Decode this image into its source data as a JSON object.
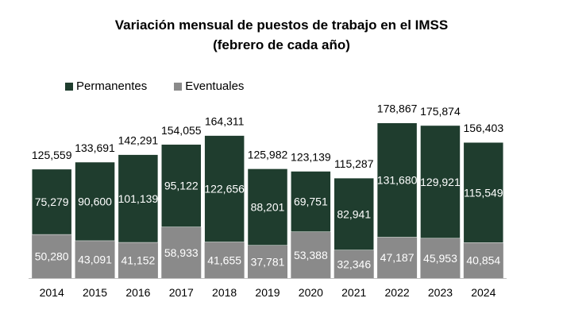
{
  "title": "Variación mensual de puestos de trabajo en el IMSS",
  "subtitle": "(febrero de cada año)",
  "colors": {
    "permanentes": "#1f3d2e",
    "eventuales": "#8a8a8a"
  },
  "chart_data": {
    "type": "bar",
    "stacked": true,
    "legend_position": "top-left",
    "grid": false,
    "categories": [
      "2014",
      "2015",
      "2016",
      "2017",
      "2018",
      "2019",
      "2020",
      "2021",
      "2022",
      "2023",
      "2024"
    ],
    "series": [
      {
        "name": "Eventuales",
        "values": [
          50280,
          43091,
          41152,
          58933,
          41655,
          37781,
          53388,
          32346,
          47187,
          45953,
          40854
        ],
        "labels": [
          "50,280",
          "43,091",
          "41,152",
          "58,933",
          "41,655",
          "37,781",
          "53,388",
          "32,346",
          "47,187",
          "45,953",
          "40,854"
        ]
      },
      {
        "name": "Permanentes",
        "values": [
          75279,
          90600,
          101139,
          95122,
          122656,
          88201,
          69751,
          82941,
          131680,
          129921,
          115549
        ],
        "labels": [
          "75,279",
          "90,600",
          "101,139",
          "95,122",
          "122,656",
          "88,201",
          "69,751",
          "82,941",
          "131,680",
          "129,921",
          "115,549"
        ]
      }
    ],
    "totals": [
      125559,
      133691,
      142291,
      154055,
      164311,
      125982,
      123139,
      115287,
      178867,
      175874,
      156403
    ],
    "total_labels": [
      "125,559",
      "133,691",
      "142,291",
      "154,055",
      "164,311",
      "125,982",
      "123,139",
      "115,287",
      "178,867",
      "175,874",
      "156,403"
    ],
    "ylim": [
      0,
      200000
    ]
  }
}
